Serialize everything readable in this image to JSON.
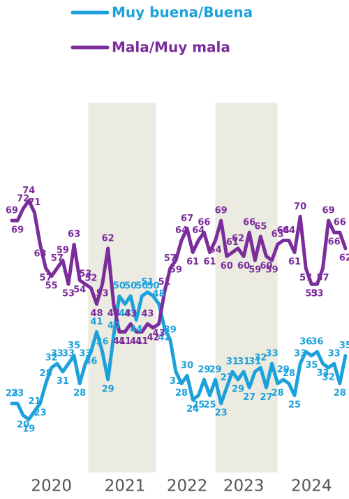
{
  "chart_data": {
    "type": "line",
    "categories": [
      null,
      null,
      null,
      null,
      null,
      null,
      null,
      "2020",
      null,
      null,
      null,
      null,
      null,
      null,
      null,
      null,
      null,
      null,
      null,
      null,
      "2021",
      null,
      null,
      null,
      null,
      null,
      null,
      null,
      null,
      null,
      null,
      "2022",
      null,
      null,
      null,
      null,
      null,
      null,
      null,
      null,
      null,
      "2023",
      null,
      null,
      null,
      null,
      null,
      null,
      null,
      null,
      null,
      null,
      null,
      "2024",
      null,
      null,
      null,
      null,
      null,
      null
    ],
    "series": [
      {
        "name": "Muy buena/Buena",
        "color": "#1da1db",
        "values": [
          23,
          23,
          20,
          19,
          21,
          23,
          28,
          32,
          33,
          31,
          33,
          35,
          28,
          33,
          36,
          41,
          36,
          29,
          40,
          50,
          48,
          50,
          44,
          50,
          51,
          50,
          48,
          42,
          39,
          31,
          28,
          30,
          24,
          25,
          29,
          25,
          29,
          23,
          27,
          31,
          29,
          31,
          27,
          31,
          32,
          27,
          33,
          28,
          29,
          28,
          25,
          33,
          36,
          35,
          36,
          33,
          32,
          33,
          28,
          35
        ]
      },
      {
        "name": "Mala/Muy mala",
        "color": "#7b2d9b",
        "values": [
          69,
          69,
          72,
          74,
          71,
          63,
          57,
          55,
          57,
          59,
          53,
          63,
          54,
          53,
          52,
          48,
          53,
          62,
          48,
          41,
          41,
          43,
          41,
          41,
          43,
          42,
          43,
          51,
          57,
          59,
          64,
          67,
          61,
          64,
          66,
          61,
          64,
          69,
          60,
          61,
          62,
          60,
          66,
          59,
          65,
          60,
          59,
          63,
          64,
          64,
          61,
          70,
          57,
          53,
          53,
          57,
          69,
          66,
          66,
          62
        ]
      }
    ],
    "ylim": [
      6,
      99
    ],
    "shading": "alternate",
    "shading_color": "#ecebe1"
  }
}
